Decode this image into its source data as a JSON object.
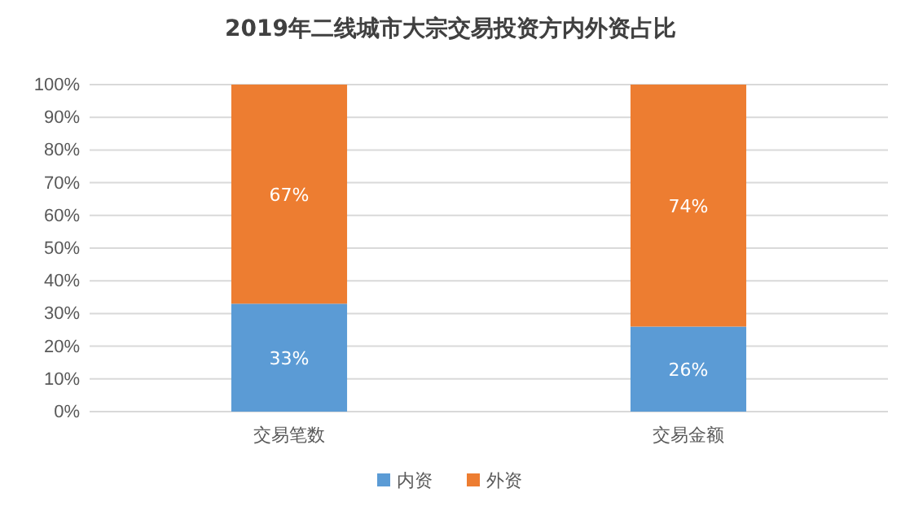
{
  "chart_data": {
    "type": "bar",
    "title": "2019年二线城市大宗交易投资方内外资占比",
    "categories": [
      "交易笔数",
      "交易金额"
    ],
    "stacked": true,
    "series": [
      {
        "name": "内资",
        "color": "#5b9bd5",
        "values": [
          33,
          26
        ],
        "value_labels": [
          "33%",
          "26%"
        ]
      },
      {
        "name": "外资",
        "color": "#ed7d31",
        "values": [
          67,
          74
        ],
        "value_labels": [
          "67%",
          "74%"
        ]
      }
    ],
    "ylim": [
      0,
      100
    ],
    "yticks": [
      {
        "value": 0,
        "label": "0%"
      },
      {
        "value": 10,
        "label": "10%"
      },
      {
        "value": 20,
        "label": "20%"
      },
      {
        "value": 30,
        "label": "30%"
      },
      {
        "value": 40,
        "label": "40%"
      },
      {
        "value": 50,
        "label": "50%"
      },
      {
        "value": 60,
        "label": "60%"
      },
      {
        "value": 70,
        "label": "70%"
      },
      {
        "value": 80,
        "label": "80%"
      },
      {
        "value": 90,
        "label": "90%"
      },
      {
        "value": 100,
        "label": "100%"
      }
    ],
    "grid": "y",
    "legend": "bottom"
  }
}
